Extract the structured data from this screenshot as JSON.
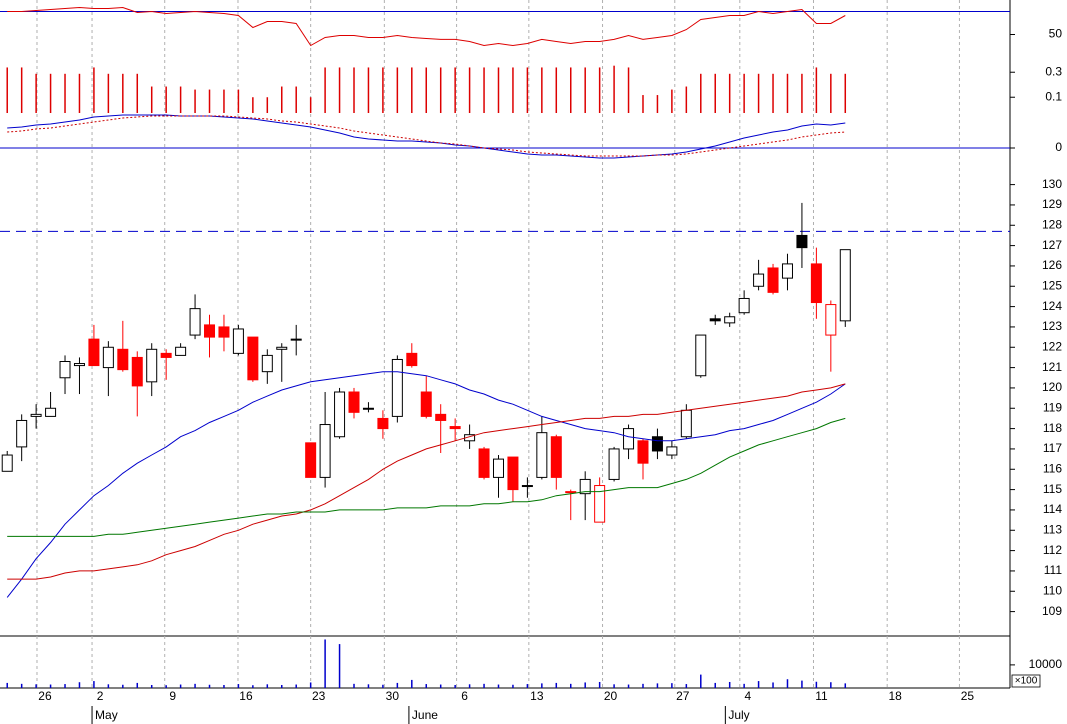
{
  "chart_data": [
    {
      "type": "line",
      "xlim": [
        -0.5,
        69.4
      ],
      "ylim": [
        20,
        80
      ],
      "yticks": [
        50
      ],
      "hline": 70,
      "hline_color": "#0000cc",
      "series": [
        {
          "color": "#dd0000",
          "values": [
            70.0,
            70.0,
            70.9,
            71.7,
            72.6,
            73.5,
            72.6,
            72.6,
            73.5,
            69.1,
            70.0,
            68.3,
            69.1,
            70.0,
            69.1,
            68.3,
            66.5,
            56.1,
            61.3,
            61.3,
            59.6,
            40.4,
            47.4,
            49.1,
            49.1,
            47.4,
            47.4,
            49.1,
            47.4,
            46.5,
            45.7,
            45.7,
            43.9,
            40.4,
            42.2,
            40.4,
            42.2,
            45.7,
            43.9,
            42.2,
            43.9,
            43.9,
            45.7,
            49.1,
            45.7,
            47.4,
            49.1,
            54.3,
            63.0,
            64.8,
            66.5,
            66.5,
            70.0,
            68.3,
            70.0,
            71.7,
            59.6,
            59.6,
            66.5
          ]
        }
      ]
    },
    {
      "type": "bar",
      "xlim": [
        -0.5,
        69.4
      ],
      "ylim": [
        0.05,
        0.45
      ],
      "log": true,
      "yticks": [
        0.3,
        0.1
      ],
      "color": "#dd0000",
      "values": [
        0.37,
        0.37,
        0.28,
        0.28,
        0.28,
        0.28,
        0.37,
        0.28,
        0.28,
        0.28,
        0.16,
        0.16,
        0.16,
        0.14,
        0.14,
        0.14,
        0.14,
        0.1,
        0.1,
        0.16,
        0.16,
        0.1,
        0.37,
        0.37,
        0.37,
        0.37,
        0.37,
        0.37,
        0.37,
        0.37,
        0.37,
        0.37,
        0.37,
        0.37,
        0.37,
        0.37,
        0.37,
        0.37,
        0.37,
        0.37,
        0.37,
        0.37,
        0.4,
        0.37,
        0.11,
        0.11,
        0.14,
        0.16,
        0.28,
        0.28,
        0.28,
        0.28,
        0.28,
        0.28,
        0.28,
        0.28,
        0.37,
        0.28,
        0.28
      ]
    },
    {
      "type": "line",
      "xlim": [
        -0.5,
        69.4
      ],
      "ylim": [
        -1.2,
        4
      ],
      "yticks": [
        0
      ],
      "hline": 0,
      "hline_color": "#0000cc",
      "series": [
        {
          "color": "#0000cc",
          "values": [
            2.0,
            2.1,
            2.3,
            2.4,
            2.6,
            2.8,
            3.1,
            3.2,
            3.3,
            3.3,
            3.3,
            3.3,
            3.2,
            3.2,
            3.2,
            3.1,
            3.0,
            2.9,
            2.7,
            2.5,
            2.3,
            2.1,
            1.8,
            1.5,
            1.1,
            0.9,
            0.8,
            0.7,
            0.7,
            0.6,
            0.5,
            0.3,
            0.2,
            0,
            -0.2,
            -0.4,
            -0.6,
            -0.7,
            -0.7,
            -0.8,
            -0.9,
            -1.0,
            -1.0,
            -0.9,
            -0.8,
            -0.7,
            -0.6,
            -0.4,
            -0.1,
            0.2,
            0.6,
            1.0,
            1.3,
            1.6,
            1.8,
            2.2,
            2.4,
            2.3,
            2.5
          ]
        },
        {
          "color": "#cc0000",
          "dash": "dotted",
          "values": [
            1.6,
            1.7,
            1.9,
            2.0,
            2.2,
            2.4,
            2.6,
            2.8,
            3.0,
            3.1,
            3.2,
            3.2,
            3.2,
            3.2,
            3.2,
            3.2,
            3.1,
            3.0,
            2.9,
            2.7,
            2.6,
            2.4,
            2.2,
            2.0,
            1.7,
            1.5,
            1.3,
            1.1,
            0.9,
            0.7,
            0.5,
            0.4,
            0.2,
            0.0,
            -0.1,
            -0.2,
            -0.4,
            -0.5,
            -0.6,
            -0.7,
            -0.8,
            -0.8,
            -0.8,
            -0.8,
            -0.8,
            -0.7,
            -0.7,
            -0.6,
            -0.4,
            -0.2,
            0.0,
            0.2,
            0.4,
            0.6,
            0.8,
            1.1,
            1.3,
            1.5,
            1.6
          ]
        }
      ]
    },
    {
      "type": "candlestick",
      "xlim": [
        -0.5,
        69.4
      ],
      "ylim": [
        107.8,
        131.8
      ],
      "yticks": [
        109,
        110,
        111,
        112,
        113,
        114,
        115,
        116,
        117,
        118,
        119,
        120,
        121,
        122,
        123,
        124,
        125,
        126,
        127,
        128,
        129,
        130
      ],
      "hline": 127.7,
      "hline_color": "#0000cc",
      "hline_dash": true,
      "open": [
        115.9,
        117.1,
        118.6,
        118.6,
        120.5,
        121.1,
        122.4,
        121.0,
        121.9,
        121.5,
        120.3,
        121.7,
        121.6,
        122.6,
        123.1,
        123.0,
        121.7,
        122.5,
        120.8,
        121.9,
        122.4,
        117.3,
        115.6,
        117.6,
        119.8,
        119.0,
        118.5,
        118.6,
        121.7,
        119.8,
        118.7,
        118.1,
        117.4,
        117.0,
        115.6,
        116.6,
        115.2,
        115.6,
        117.6,
        114.9,
        114.8,
        113.4,
        115.5,
        117.0,
        117.4,
        117.6,
        116.7,
        117.6,
        120.6,
        123.3,
        123.2,
        123.7,
        125.0,
        125.9,
        125.4,
        127.5,
        126.1,
        122.6,
        123.3
      ],
      "high": [
        116.9,
        118.7,
        119.2,
        119.8,
        121.6,
        121.5,
        123.1,
        122.3,
        123.3,
        121.8,
        122.2,
        121.9,
        122.2,
        124.6,
        123.6,
        123.6,
        123.1,
        122.5,
        121.9,
        122.2,
        123.1,
        117.3,
        119.8,
        120.0,
        120.0,
        119.3,
        118.9,
        121.6,
        122.2,
        120.6,
        119.2,
        118.5,
        118.2,
        117.1,
        116.7,
        116.6,
        115.6,
        118.6,
        117.7,
        115.0,
        115.9,
        115.6,
        117.1,
        118.2,
        117.5,
        118.0,
        117.4,
        119.2,
        122.6,
        123.6,
        123.7,
        124.8,
        126.3,
        126.1,
        126.6,
        129.1,
        126.9,
        124.3,
        126.8
      ],
      "low": [
        115.9,
        116.4,
        118.0,
        118.6,
        119.7,
        119.7,
        121.1,
        119.6,
        120.8,
        118.6,
        119.6,
        120.4,
        121.6,
        122.4,
        121.5,
        121.8,
        121.6,
        120.3,
        120.2,
        120.3,
        121.6,
        115.6,
        115.1,
        117.5,
        118.5,
        118.8,
        117.5,
        118.3,
        121.0,
        118.5,
        116.8,
        117.4,
        117.0,
        115.5,
        114.6,
        114.4,
        114.6,
        115.5,
        115.0,
        113.5,
        113.5,
        113.4,
        115.4,
        116.5,
        115.5,
        116.5,
        116.5,
        117.5,
        120.5,
        123.1,
        123.0,
        123.6,
        124.8,
        124.6,
        124.8,
        125.9,
        123.4,
        120.8,
        123.0
      ],
      "close": [
        116.7,
        118.4,
        118.7,
        119.0,
        121.3,
        121.2,
        121.1,
        122.0,
        120.9,
        120.1,
        121.9,
        121.5,
        122.0,
        123.9,
        122.5,
        122.5,
        122.9,
        120.4,
        121.6,
        122.0,
        122.4,
        115.6,
        118.2,
        119.8,
        118.8,
        119.0,
        118.0,
        121.4,
        121.1,
        118.6,
        118.4,
        118.0,
        117.7,
        115.6,
        116.5,
        115.0,
        115.2,
        117.8,
        115.6,
        114.9,
        115.5,
        115.2,
        117.0,
        118.0,
        116.3,
        116.9,
        117.1,
        118.9,
        122.6,
        123.4,
        123.5,
        124.4,
        125.6,
        124.7,
        126.1,
        126.9,
        124.2,
        124.1,
        126.8
      ],
      "fill": [
        "#ffffff",
        "#ffffff",
        "#ffffff",
        "#ffffff",
        "#ffffff",
        "#ffffff",
        "#ff0000",
        "#ffffff",
        "#ff0000",
        "#ff0000",
        "#ffffff",
        "#ff0000",
        "#ffffff",
        "#ffffff",
        "#ff0000",
        "#ff0000",
        "#ffffff",
        "#ff0000",
        "#ffffff",
        "#ffffff",
        "#000000",
        "#ff0000",
        "#ffffff",
        "#ffffff",
        "#ff0000",
        "#000000",
        "#ff0000",
        "#ffffff",
        "#ff0000",
        "#ff0000",
        "#ff0000",
        "#ff0000",
        "#ffffff",
        "#ff0000",
        "#ffffff",
        "#ff0000",
        "#000000",
        "#ffffff",
        "#ff0000",
        "#ff0000",
        "#ffffff",
        "#ffffff",
        "#ffffff",
        "#ffffff",
        "#ff0000",
        "#000000",
        "#ffffff",
        "#ffffff",
        "#ffffff",
        "#000000",
        "#ffffff",
        "#ffffff",
        "#ffffff",
        "#ff0000",
        "#ffffff",
        "#000000",
        "#ff0000",
        "#ffffff",
        "#ffffff"
      ],
      "stroke": [
        "#000000",
        "#000000",
        "#000000",
        "#000000",
        "#000000",
        "#000000",
        "#ff0000",
        "#000000",
        "#ff0000",
        "#ff0000",
        "#000000",
        "#ff0000",
        "#000000",
        "#000000",
        "#ff0000",
        "#ff0000",
        "#000000",
        "#ff0000",
        "#000000",
        "#000000",
        "#000000",
        "#ff0000",
        "#000000",
        "#000000",
        "#ff0000",
        "#000000",
        "#ff0000",
        "#000000",
        "#ff0000",
        "#ff0000",
        "#ff0000",
        "#ff0000",
        "#000000",
        "#ff0000",
        "#000000",
        "#ff0000",
        "#000000",
        "#000000",
        "#ff0000",
        "#ff0000",
        "#000000",
        "#ff0000",
        "#000000",
        "#000000",
        "#ff0000",
        "#000000",
        "#000000",
        "#000000",
        "#000000",
        "#000000",
        "#000000",
        "#000000",
        "#000000",
        "#ff0000",
        "#000000",
        "#000000",
        "#ff0000",
        "#ff0000",
        "#000000"
      ],
      "series": [
        {
          "color": "#0000cc",
          "values": [
            109.7,
            110.6,
            111.6,
            112.4,
            113.3,
            114.0,
            114.7,
            115.2,
            115.8,
            116.3,
            116.7,
            117.1,
            117.6,
            117.9,
            118.3,
            118.6,
            118.9,
            119.3,
            119.6,
            119.9,
            120.1,
            120.3,
            120.4,
            120.5,
            120.6,
            120.7,
            120.8,
            120.8,
            120.7,
            120.6,
            120.4,
            120.2,
            119.9,
            119.7,
            119.4,
            119.2,
            118.9,
            118.6,
            118.4,
            118.2,
            118.0,
            117.9,
            117.8,
            117.6,
            117.5,
            117.4,
            117.4,
            117.5,
            117.6,
            117.7,
            117.9,
            118.0,
            118.2,
            118.4,
            118.7,
            119.0,
            119.3,
            119.7,
            120.2
          ]
        },
        {
          "color": "#cc0000",
          "values": [
            110.6,
            110.6,
            110.6,
            110.7,
            110.9,
            111.0,
            111.0,
            111.1,
            111.2,
            111.3,
            111.5,
            111.8,
            112.0,
            112.2,
            112.5,
            112.8,
            113.0,
            113.3,
            113.5,
            113.7,
            113.8,
            114.0,
            114.3,
            114.7,
            115.1,
            115.5,
            116.0,
            116.4,
            116.7,
            117.0,
            117.2,
            117.4,
            117.6,
            117.8,
            117.9,
            118.0,
            118.1,
            118.2,
            118.3,
            118.4,
            118.5,
            118.5,
            118.6,
            118.6,
            118.7,
            118.7,
            118.8,
            118.9,
            119.0,
            119.1,
            119.2,
            119.3,
            119.4,
            119.5,
            119.6,
            119.8,
            119.9,
            120.0,
            120.2
          ]
        },
        {
          "color": "#007700",
          "values": [
            112.7,
            112.7,
            112.7,
            112.7,
            112.7,
            112.7,
            112.7,
            112.8,
            112.8,
            112.9,
            113.0,
            113.1,
            113.2,
            113.3,
            113.4,
            113.5,
            113.6,
            113.7,
            113.8,
            113.8,
            113.9,
            113.9,
            113.9,
            114.0,
            114.0,
            114.0,
            114.0,
            114.1,
            114.1,
            114.1,
            114.2,
            114.2,
            114.2,
            114.3,
            114.3,
            114.4,
            114.4,
            114.5,
            114.7,
            114.8,
            114.9,
            114.9,
            115.0,
            115.1,
            115.1,
            115.1,
            115.3,
            115.5,
            115.8,
            116.2,
            116.6,
            116.9,
            117.2,
            117.4,
            117.6,
            117.8,
            118.0,
            118.3,
            118.5
          ]
        }
      ]
    },
    {
      "type": "bar",
      "xlim": [
        -0.5,
        69.4
      ],
      "ylim": [
        0,
        22500
      ],
      "yticks": [
        10000
      ],
      "y_unit": "×100",
      "color": "#0000cc",
      "values": [
        2200,
        1800,
        1600,
        1500,
        1700,
        2500,
        3000,
        1600,
        1400,
        2200,
        1300,
        1200,
        1500,
        1800,
        1400,
        1300,
        1700,
        1200,
        1600,
        1300,
        1500,
        2400,
        21000,
        19000,
        1800,
        1600,
        1400,
        2200,
        3500,
        1700,
        1500,
        1300,
        1600,
        1800,
        1500,
        1400,
        1700,
        2000,
        2200,
        1800,
        2400,
        2600,
        1600,
        1500,
        1800,
        2000,
        2100,
        1700,
        5800,
        2200,
        2600,
        1800,
        3000,
        2400,
        3800,
        3200,
        2700,
        2500,
        2000
      ],
      "xticks": [
        {
          "value": 2.06,
          "label": "26"
        },
        {
          "value": 5.87,
          "label": "2"
        },
        {
          "value": 10.9,
          "label": "9"
        },
        {
          "value": 15.97,
          "label": "16"
        },
        {
          "value": 21.0,
          "label": "23"
        },
        {
          "value": 26.1,
          "label": "30"
        },
        {
          "value": 31.1,
          "label": "6"
        },
        {
          "value": 36.1,
          "label": "13"
        },
        {
          "value": 41.2,
          "label": "20"
        },
        {
          "value": 46.2,
          "label": "27"
        },
        {
          "value": 50.7,
          "label": "4"
        },
        {
          "value": 55.8,
          "label": "11"
        },
        {
          "value": 60.9,
          "label": "18"
        },
        {
          "value": 65.9,
          "label": "25"
        }
      ],
      "month_ticks": [
        {
          "value": 5.87,
          "label": "May"
        },
        {
          "value": 27.8,
          "label": "June"
        },
        {
          "value": 49.7,
          "label": "July"
        }
      ]
    }
  ]
}
